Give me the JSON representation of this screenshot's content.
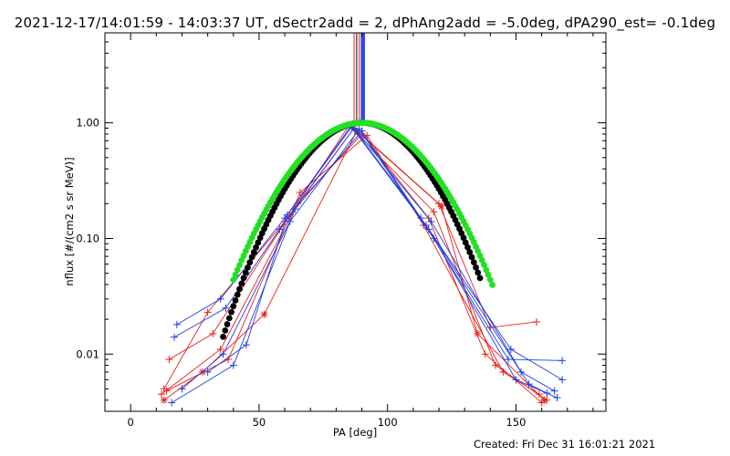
{
  "title": "2021-12-17/14:01:59 - 14:03:37 UT, dSectr2add = 2, dPhAng2add = -5.0deg, dPA290_est= -0.1deg",
  "footer": "Created: Fri Dec 31 16:01:21 2021",
  "chart_data": {
    "type": "line",
    "title": "2021-12-17/14:01:59 - 14:03:37 UT, dSectr2add = 2, dPhAng2add = -5.0deg, dPA290_est= -0.1deg",
    "xlabel": "PA [deg]",
    "ylabel": "nflux [#/(cm2 s sr MeV)]",
    "xlim": [
      -10,
      185
    ],
    "ylim": [
      0.0032,
      6.0
    ],
    "yscale": "log",
    "x_ticks": [
      0,
      50,
      100,
      150
    ],
    "x_tick_labels": [
      "0",
      "50",
      "100",
      "150"
    ],
    "y_ticks": [
      0.01,
      0.1,
      1.0
    ],
    "y_tick_labels": [
      "0.01",
      "0.10",
      "1.00"
    ],
    "grid": false,
    "legend": "none",
    "colors": {
      "red": "#e8211a",
      "blue": "#1f3fe0",
      "black": "#000000",
      "green": "#22e022"
    },
    "vertical_lines": [
      {
        "x": 87.0,
        "color": "#e8211a"
      },
      {
        "x": 88.0,
        "color": "#000000"
      },
      {
        "x": 89.0,
        "color": "#e8211a"
      },
      {
        "x": 90.0,
        "color": "#1f3fe0"
      },
      {
        "x": 90.8,
        "color": "#1f3fe0"
      }
    ],
    "fit_black": {
      "center": 90.0,
      "sigma": 18.5,
      "x_range": [
        36,
        136
      ]
    },
    "fit_green": {
      "center": 90.0,
      "sigma": 20.0,
      "x_range": [
        40,
        141
      ]
    },
    "series": [
      {
        "color": "red",
        "marker": "+",
        "points": [
          [
            13,
            0.005
          ],
          [
            30,
            0.023
          ],
          [
            60,
            0.14
          ],
          [
            87,
            0.9
          ],
          [
            120,
            0.2
          ],
          [
            140,
            0.017
          ],
          [
            158,
            0.019
          ]
        ]
      },
      {
        "color": "red",
        "marker": "+",
        "points": [
          [
            15,
            0.009
          ],
          [
            32,
            0.015
          ],
          [
            62,
            0.16
          ],
          [
            85,
            0.95
          ],
          [
            118,
            0.17
          ],
          [
            142,
            0.008
          ],
          [
            162,
            0.004
          ]
        ]
      },
      {
        "color": "red",
        "marker": "+",
        "points": [
          [
            12,
            0.0045
          ],
          [
            35,
            0.011
          ],
          [
            65,
            0.2
          ],
          [
            90,
            0.8
          ],
          [
            116,
            0.15
          ],
          [
            138,
            0.01
          ],
          [
            160,
            0.0038
          ]
        ]
      },
      {
        "color": "red",
        "marker": "*",
        "points": [
          [
            13,
            0.004
          ],
          [
            28,
            0.007
          ],
          [
            52,
            0.022
          ],
          [
            88,
            0.85
          ],
          [
            121,
            0.19
          ],
          [
            135,
            0.015
          ],
          [
            161,
            0.004
          ]
        ]
      },
      {
        "color": "red",
        "marker": "+",
        "points": [
          [
            14,
            0.0048
          ],
          [
            38,
            0.009
          ],
          [
            66,
            0.25
          ],
          [
            92,
            0.78
          ],
          [
            114,
            0.13
          ],
          [
            145,
            0.007
          ],
          [
            159,
            0.0045
          ]
        ]
      },
      {
        "color": "blue",
        "marker": "+",
        "points": [
          [
            18,
            0.018
          ],
          [
            35,
            0.03
          ],
          [
            60,
            0.15
          ],
          [
            86,
            0.95
          ],
          [
            115,
            0.13
          ],
          [
            148,
            0.011
          ],
          [
            168,
            0.006
          ]
        ]
      },
      {
        "color": "blue",
        "marker": "+",
        "points": [
          [
            17,
            0.014
          ],
          [
            37,
            0.025
          ],
          [
            58,
            0.12
          ],
          [
            87,
            0.9
          ],
          [
            117,
            0.14
          ],
          [
            152,
            0.007
          ],
          [
            165,
            0.0048
          ]
        ]
      },
      {
        "color": "blue",
        "marker": "+",
        "points": [
          [
            20,
            0.005
          ],
          [
            36,
            0.01
          ],
          [
            62,
            0.14
          ],
          [
            89,
            0.88
          ],
          [
            118,
            0.1
          ],
          [
            150,
            0.006
          ],
          [
            166,
            0.0042
          ]
        ]
      },
      {
        "color": "blue",
        "marker": "+",
        "points": [
          [
            16,
            0.0038
          ],
          [
            40,
            0.008
          ],
          [
            64,
            0.18
          ],
          [
            90,
            0.85
          ],
          [
            113,
            0.15
          ],
          [
            147,
            0.009
          ],
          [
            168,
            0.0088
          ]
        ]
      },
      {
        "color": "blue",
        "marker": "+",
        "points": [
          [
            30,
            0.007
          ],
          [
            45,
            0.012
          ],
          [
            61,
            0.16
          ],
          [
            86,
            0.92
          ],
          [
            116,
            0.12
          ],
          [
            155,
            0.0055
          ],
          [
            162,
            0.0046
          ]
        ]
      }
    ]
  }
}
